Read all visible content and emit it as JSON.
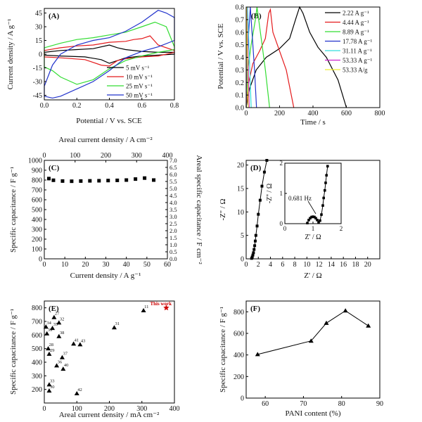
{
  "chart_data": [
    {
      "panel": "(A)",
      "type": "line",
      "xlabel": "Potential / V vs. SCE",
      "ylabel": "Current density / A g⁻¹",
      "xlim": [
        0,
        0.8
      ],
      "ylim": [
        -50,
        50
      ],
      "xticks": [
        "0.0",
        "0.2",
        "0.4",
        "0.6",
        "0.8"
      ],
      "yticks": [
        "-45",
        "-30",
        "-15",
        "0",
        "15",
        "30",
        "45"
      ],
      "legend_position": "bottom-right",
      "colors": [
        "#000000",
        "#e41a1c",
        "#33dd33",
        "#2233cc"
      ],
      "series": [
        {
          "name": "5 mV s⁻¹",
          "upper": [
            [
              0,
              2
            ],
            [
              0.1,
              4
            ],
            [
              0.2,
              5
            ],
            [
              0.3,
              6
            ],
            [
              0.4,
              10
            ],
            [
              0.45,
              7
            ],
            [
              0.5,
              5
            ],
            [
              0.6,
              3
            ],
            [
              0.7,
              2
            ],
            [
              0.8,
              2
            ]
          ],
          "lower": [
            [
              0.8,
              0
            ],
            [
              0.7,
              -1
            ],
            [
              0.6,
              -2
            ],
            [
              0.5,
              -4
            ],
            [
              0.45,
              -7
            ],
            [
              0.4,
              -10
            ],
            [
              0.35,
              -6
            ],
            [
              0.25,
              -3
            ],
            [
              0.1,
              -2
            ],
            [
              0,
              -1
            ]
          ]
        },
        {
          "name": "10 mV s⁻¹",
          "upper": [
            [
              0,
              4
            ],
            [
              0.1,
              7
            ],
            [
              0.2,
              9
            ],
            [
              0.3,
              10
            ],
            [
              0.4,
              13
            ],
            [
              0.5,
              14
            ],
            [
              0.55,
              16
            ],
            [
              0.6,
              17
            ],
            [
              0.65,
              20
            ],
            [
              0.7,
              10
            ],
            [
              0.8,
              4
            ]
          ],
          "lower": [
            [
              0.8,
              2
            ],
            [
              0.7,
              -2
            ],
            [
              0.6,
              -3
            ],
            [
              0.5,
              -5
            ],
            [
              0.45,
              -7
            ],
            [
              0.4,
              -13
            ],
            [
              0.35,
              -12
            ],
            [
              0.25,
              -6
            ],
            [
              0.1,
              -4
            ],
            [
              0,
              -3
            ]
          ]
        },
        {
          "name": "25 mV s⁻¹",
          "upper": [
            [
              0,
              7
            ],
            [
              0.1,
              12
            ],
            [
              0.2,
              16
            ],
            [
              0.3,
              18
            ],
            [
              0.4,
              21
            ],
            [
              0.5,
              24
            ],
            [
              0.6,
              30
            ],
            [
              0.68,
              35
            ],
            [
              0.75,
              30
            ],
            [
              0.8,
              8
            ]
          ],
          "lower": [
            [
              0.8,
              5
            ],
            [
              0.7,
              2
            ],
            [
              0.6,
              -2
            ],
            [
              0.5,
              -7
            ],
            [
              0.4,
              -16
            ],
            [
              0.3,
              -28
            ],
            [
              0.2,
              -33
            ],
            [
              0.1,
              -25
            ],
            [
              0.05,
              -18
            ],
            [
              0,
              -14
            ]
          ]
        },
        {
          "name": "50 mV s⁻¹",
          "upper": [
            [
              0,
              -35
            ],
            [
              0.05,
              -12
            ],
            [
              0.1,
              0
            ],
            [
              0.2,
              10
            ],
            [
              0.3,
              15
            ],
            [
              0.4,
              18
            ],
            [
              0.5,
              25
            ],
            [
              0.6,
              35
            ],
            [
              0.7,
              48
            ],
            [
              0.75,
              45
            ],
            [
              0.8,
              40
            ]
          ],
          "lower": [
            [
              0.8,
              15
            ],
            [
              0.7,
              8
            ],
            [
              0.6,
              3
            ],
            [
              0.5,
              -4
            ],
            [
              0.4,
              -18
            ],
            [
              0.3,
              -30
            ],
            [
              0.2,
              -38
            ],
            [
              0.1,
              -46
            ],
            [
              0.05,
              -48
            ],
            [
              0,
              -46
            ]
          ]
        }
      ]
    },
    {
      "panel": "(B)",
      "type": "line",
      "xlabel": "Time / s",
      "ylabel": "Potential / V vs. SCE",
      "xlim": [
        0,
        800
      ],
      "ylim": [
        0,
        0.8
      ],
      "xticks": [
        "0",
        "200",
        "400",
        "600",
        "800"
      ],
      "yticks": [
        "0.0",
        "0.1",
        "0.2",
        "0.3",
        "0.4",
        "0.5",
        "0.6",
        "0.7",
        "0.8"
      ],
      "legend_position": "top-right",
      "colors": [
        "#000000",
        "#e41a1c",
        "#33dd33",
        "#2233cc",
        "#33dddd",
        "#cc22cc",
        "#eeee33"
      ],
      "series": [
        {
          "name": "2.22 A g⁻¹",
          "points": [
            [
              0,
              0
            ],
            [
              20,
              0.15
            ],
            [
              60,
              0.3
            ],
            [
              120,
              0.4
            ],
            [
              200,
              0.47
            ],
            [
              260,
              0.55
            ],
            [
              300,
              0.72
            ],
            [
              320,
              0.8
            ],
            [
              340,
              0.75
            ],
            [
              380,
              0.6
            ],
            [
              430,
              0.48
            ],
            [
              480,
              0.4
            ],
            [
              550,
              0.22
            ],
            [
              600,
              0
            ]
          ]
        },
        {
          "name": "4.44 A g⁻¹",
          "points": [
            [
              0,
              0
            ],
            [
              15,
              0.2
            ],
            [
              40,
              0.35
            ],
            [
              80,
              0.45
            ],
            [
              115,
              0.55
            ],
            [
              135,
              0.75
            ],
            [
              145,
              0.78
            ],
            [
              160,
              0.6
            ],
            [
              200,
              0.45
            ],
            [
              240,
              0.3
            ],
            [
              285,
              0
            ]
          ]
        },
        {
          "name": "8.89 A g⁻¹",
          "points": [
            [
              0,
              0
            ],
            [
              10,
              0.3
            ],
            [
              30,
              0.5
            ],
            [
              55,
              0.7
            ],
            [
              65,
              0.8
            ],
            [
              75,
              0.7
            ],
            [
              95,
              0.5
            ],
            [
              115,
              0.3
            ],
            [
              140,
              0
            ]
          ]
        },
        {
          "name": "17.78 A g⁻¹",
          "points": [
            [
              0,
              0
            ],
            [
              5,
              0.3
            ],
            [
              15,
              0.6
            ],
            [
              25,
              0.8
            ],
            [
              35,
              0.6
            ],
            [
              50,
              0.3
            ],
            [
              62,
              0
            ]
          ]
        },
        {
          "name": "31.11 A g⁻¹",
          "points": [
            [
              0,
              0
            ],
            [
              3,
              0.4
            ],
            [
              8,
              0.8
            ],
            [
              14,
              0.6
            ],
            [
              22,
              0.3
            ],
            [
              30,
              0
            ]
          ]
        },
        {
          "name": "53.33 A g⁻¹",
          "points": [
            [
              0,
              0
            ],
            [
              2,
              0.4
            ],
            [
              4,
              0.8
            ],
            [
              8,
              0.6
            ],
            [
              13,
              0.3
            ],
            [
              18,
              0
            ]
          ]
        },
        {
          "name": "53.33 A/g",
          "points": [
            [
              0,
              0
            ],
            [
              1,
              0.4
            ],
            [
              2,
              0.8
            ],
            [
              5,
              0.6
            ],
            [
              9,
              0.3
            ],
            [
              12,
              0
            ]
          ]
        }
      ]
    },
    {
      "panel": "(C)",
      "type": "scatter",
      "xlabel": "Current density / A g⁻¹",
      "ylabel": "Specific capacitance / F g⁻¹",
      "y2label": "Areal specific capacitance / F cm⁻²",
      "x2label": "Areal current density / A cm⁻²",
      "xlim": [
        0,
        60
      ],
      "ylim": [
        0,
        1000
      ],
      "x2lim": [
        0,
        400
      ],
      "y2lim": [
        0,
        7.0
      ],
      "xticks": [
        "0",
        "10",
        "20",
        "30",
        "40",
        "50",
        "60"
      ],
      "yticks": [
        "0",
        "100",
        "200",
        "300",
        "400",
        "500",
        "600",
        "700",
        "800",
        "900",
        "1000"
      ],
      "x2ticks": [
        "0",
        "100",
        "200",
        "300",
        "400"
      ],
      "y2ticks": [
        "0.0",
        "0.5",
        "1.0",
        "1.5",
        "2.0",
        "2.5",
        "3.0",
        "3.5",
        "4.0",
        "4.5",
        "5.0",
        "5.5",
        "6.0",
        "6.5",
        "7.0"
      ],
      "x": [
        2.22,
        4.44,
        8.89,
        13.33,
        17.78,
        22.22,
        26.67,
        31.11,
        35.56,
        40,
        44.44,
        48.89,
        53.33
      ],
      "y": [
        815,
        798,
        790,
        788,
        790,
        792,
        793,
        795,
        797,
        800,
        810,
        820,
        800
      ]
    },
    {
      "panel": "(D)",
      "type": "line",
      "xlabel": "Z' / Ω",
      "ylabel": "-Z'' / Ω",
      "xlim": [
        0,
        22
      ],
      "ylim": [
        0,
        21
      ],
      "xticks": [
        "0",
        "2",
        "4",
        "6",
        "8",
        "10",
        "12",
        "14",
        "16",
        "18",
        "20"
      ],
      "yticks": [
        "0",
        "5",
        "10",
        "15",
        "20"
      ],
      "x": [
        0.9,
        1.0,
        1.1,
        1.2,
        1.3,
        1.4,
        1.5,
        1.6,
        1.8,
        2.0,
        2.3,
        2.6,
        3.0,
        3.4
      ],
      "y": [
        0.1,
        0.4,
        0.8,
        1.3,
        2.0,
        2.8,
        3.8,
        5.0,
        7.0,
        9.5,
        12.5,
        15.5,
        18.5,
        21
      ],
      "inset": {
        "xlabel": "Z' / Ω",
        "ylabel": "-Z'' / Ω",
        "xlim": [
          0,
          2
        ],
        "ylim": [
          0,
          2
        ],
        "xticks": [
          "0",
          "1",
          "2"
        ],
        "yticks": [
          "0",
          "1",
          "2"
        ],
        "annotation": "0.681 Hz",
        "x": [
          0.8,
          0.85,
          0.9,
          0.95,
          1.0,
          1.05,
          1.1,
          1.15,
          1.2,
          1.25,
          1.3,
          1.35,
          1.38,
          1.42,
          1.45,
          1.48,
          1.52
        ],
        "y": [
          0.02,
          0.12,
          0.18,
          0.22,
          0.23,
          0.22,
          0.18,
          0.12,
          0.05,
          0.1,
          0.3,
          0.6,
          0.85,
          1.1,
          1.35,
          1.6,
          1.9
        ]
      }
    },
    {
      "panel": "(E)",
      "type": "scatter",
      "xlabel": "Areal current density / mA cm⁻²",
      "ylabel": "Specific capacitance / F g⁻¹",
      "xlim": [
        0,
        400
      ],
      "ylim": [
        100,
        850
      ],
      "xticks": [
        "0",
        "100",
        "200",
        "300",
        "400"
      ],
      "yticks": [
        "200",
        "300",
        "400",
        "500",
        "600",
        "700",
        "800"
      ],
      "annotation": "This work",
      "points": [
        {
          "label": "34",
          "x": 5,
          "y": 660
        },
        {
          "label": "27",
          "x": 30,
          "y": 730
        },
        {
          "label": "35",
          "x": 25,
          "y": 650
        },
        {
          "label": "32",
          "x": 45,
          "y": 690
        },
        {
          "label": "39",
          "x": 8,
          "y": 610
        },
        {
          "label": "38",
          "x": 45,
          "y": 590
        },
        {
          "label": "28",
          "x": 12,
          "y": 500
        },
        {
          "label": "29",
          "x": 15,
          "y": 460
        },
        {
          "label": "41",
          "x": 90,
          "y": 535
        },
        {
          "label": "43",
          "x": 110,
          "y": 530
        },
        {
          "label": "37",
          "x": 55,
          "y": 435
        },
        {
          "label": "36",
          "x": 38,
          "y": 375
        },
        {
          "label": "40",
          "x": 58,
          "y": 350
        },
        {
          "label": "33",
          "x": 15,
          "y": 235
        },
        {
          "label": "31",
          "x": 215,
          "y": 655
        },
        {
          "label": "11",
          "x": 305,
          "y": 780
        },
        {
          "label": "30",
          "x": 15,
          "y": 190
        },
        {
          "label": "42",
          "x": 100,
          "y": 170
        },
        {
          "label": "This work",
          "x": 375,
          "y": 800
        }
      ]
    },
    {
      "panel": "(F)",
      "type": "line",
      "xlabel": "PANI content (%)",
      "ylabel": "Specific capacitance / F g⁻¹",
      "xlim": [
        55,
        90
      ],
      "ylim": [
        0,
        900
      ],
      "xticks": [
        "60",
        "70",
        "80",
        "90"
      ],
      "yticks": [
        "0",
        "200",
        "400",
        "600",
        "800"
      ],
      "x": [
        58,
        72,
        76,
        81,
        87
      ],
      "y": [
        405,
        530,
        695,
        810,
        670
      ]
    }
  ]
}
